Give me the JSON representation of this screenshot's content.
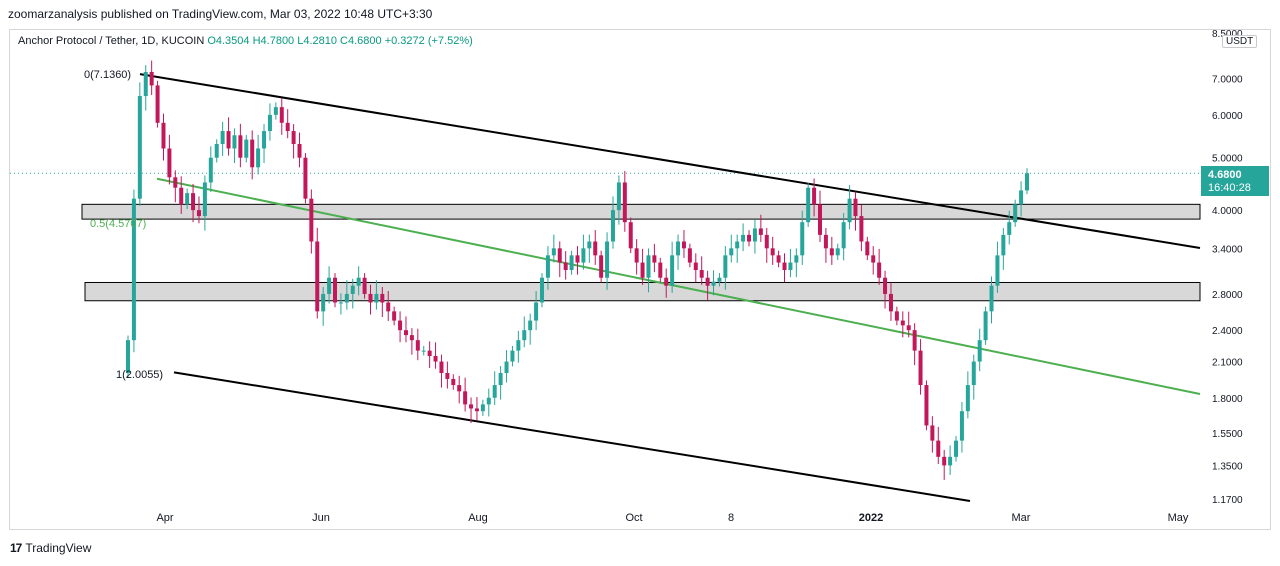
{
  "header": {
    "publisher": "zoomarzanalysis published on TradingView.com, Mar 03, 2022 10:48 UTC+3:30"
  },
  "symbol": {
    "name": "Anchor Protocol / Tether, 1D, KUCOIN",
    "ohlc": "O4.3504 H4.7800 L4.2810 C4.6800 +0.3272 (+7.52%)"
  },
  "currency": "USDT",
  "price_tag": {
    "price": "4.6800",
    "countdown": "16:40:28",
    "color": "#26a69a"
  },
  "footer": {
    "brand": "TradingView"
  },
  "annotations": {
    "fib0": "0(7.1360)",
    "fib05": "0.5(4.5707)",
    "fib1": "1(2.0055)"
  },
  "colors": {
    "up": "#26a69a",
    "down": "#c2185b",
    "fib_mid": "#4caf50",
    "channel": "#000000",
    "zone": "#d1d1d1"
  },
  "chart_data": {
    "type": "candlestick",
    "scale": "log",
    "ylim": [
      1.17,
      8.5
    ],
    "y_ticks": [
      "8.5000",
      "7.0000",
      "6.0000",
      "5.0000",
      "4.0000",
      "3.4000",
      "2.8000",
      "2.4000",
      "2.1000",
      "1.8000",
      "1.5500",
      "1.3500",
      "1.1700"
    ],
    "x_ticks": [
      "Apr",
      "Jun",
      "Aug",
      "Oct",
      "8",
      "2022",
      "Mar",
      "May"
    ],
    "last": {
      "open": 4.3504,
      "high": 4.78,
      "low": 4.281,
      "close": 4.68
    },
    "fib_levels": [
      {
        "label": "0",
        "value": 7.136
      },
      {
        "label": "0.5",
        "value": 4.5707
      },
      {
        "label": "1",
        "value": 2.0055
      }
    ],
    "zones": [
      {
        "low": 3.85,
        "high": 4.1
      },
      {
        "low": 2.72,
        "high": 2.94
      }
    ],
    "closes": [
      2.3,
      4.2,
      6.5,
      7.2,
      6.8,
      5.8,
      5.2,
      4.6,
      4.4,
      4.1,
      4.3,
      4.0,
      3.9,
      4.5,
      5.0,
      5.3,
      5.6,
      5.2,
      5.5,
      5.0,
      5.4,
      4.8,
      5.2,
      5.6,
      6.0,
      6.2,
      5.8,
      5.6,
      5.3,
      5.0,
      4.2,
      3.5,
      2.6,
      2.8,
      3.0,
      2.7,
      2.7,
      2.8,
      2.9,
      3.0,
      2.8,
      2.7,
      2.8,
      2.7,
      2.6,
      2.5,
      2.4,
      2.35,
      2.3,
      2.2,
      2.2,
      2.15,
      2.1,
      2.0,
      1.95,
      1.9,
      1.85,
      1.75,
      1.72,
      1.7,
      1.75,
      1.8,
      1.9,
      2.0,
      2.1,
      2.2,
      2.3,
      2.4,
      2.5,
      2.7,
      3.0,
      3.3,
      3.4,
      3.2,
      3.1,
      3.3,
      3.2,
      3.4,
      3.5,
      3.3,
      3.0,
      3.5,
      4.0,
      4.5,
      3.8,
      3.4,
      3.2,
      3.0,
      3.3,
      3.2,
      3.0,
      2.9,
      3.3,
      3.5,
      3.4,
      3.2,
      3.1,
      3.0,
      2.9,
      2.95,
      3.0,
      3.3,
      3.4,
      3.5,
      3.6,
      3.5,
      3.7,
      3.6,
      3.4,
      3.3,
      3.2,
      3.1,
      3.2,
      3.3,
      3.8,
      4.4,
      4.1,
      3.6,
      3.4,
      3.3,
      3.4,
      3.8,
      4.2,
      3.9,
      3.5,
      3.3,
      3.2,
      3.0,
      2.8,
      2.6,
      2.5,
      2.45,
      2.4,
      2.2,
      1.9,
      1.6,
      1.5,
      1.4,
      1.35,
      1.4,
      1.5,
      1.7,
      1.9,
      2.1,
      2.3,
      2.6,
      2.9,
      3.3,
      3.6,
      3.8,
      4.1,
      4.35,
      4.68
    ]
  }
}
